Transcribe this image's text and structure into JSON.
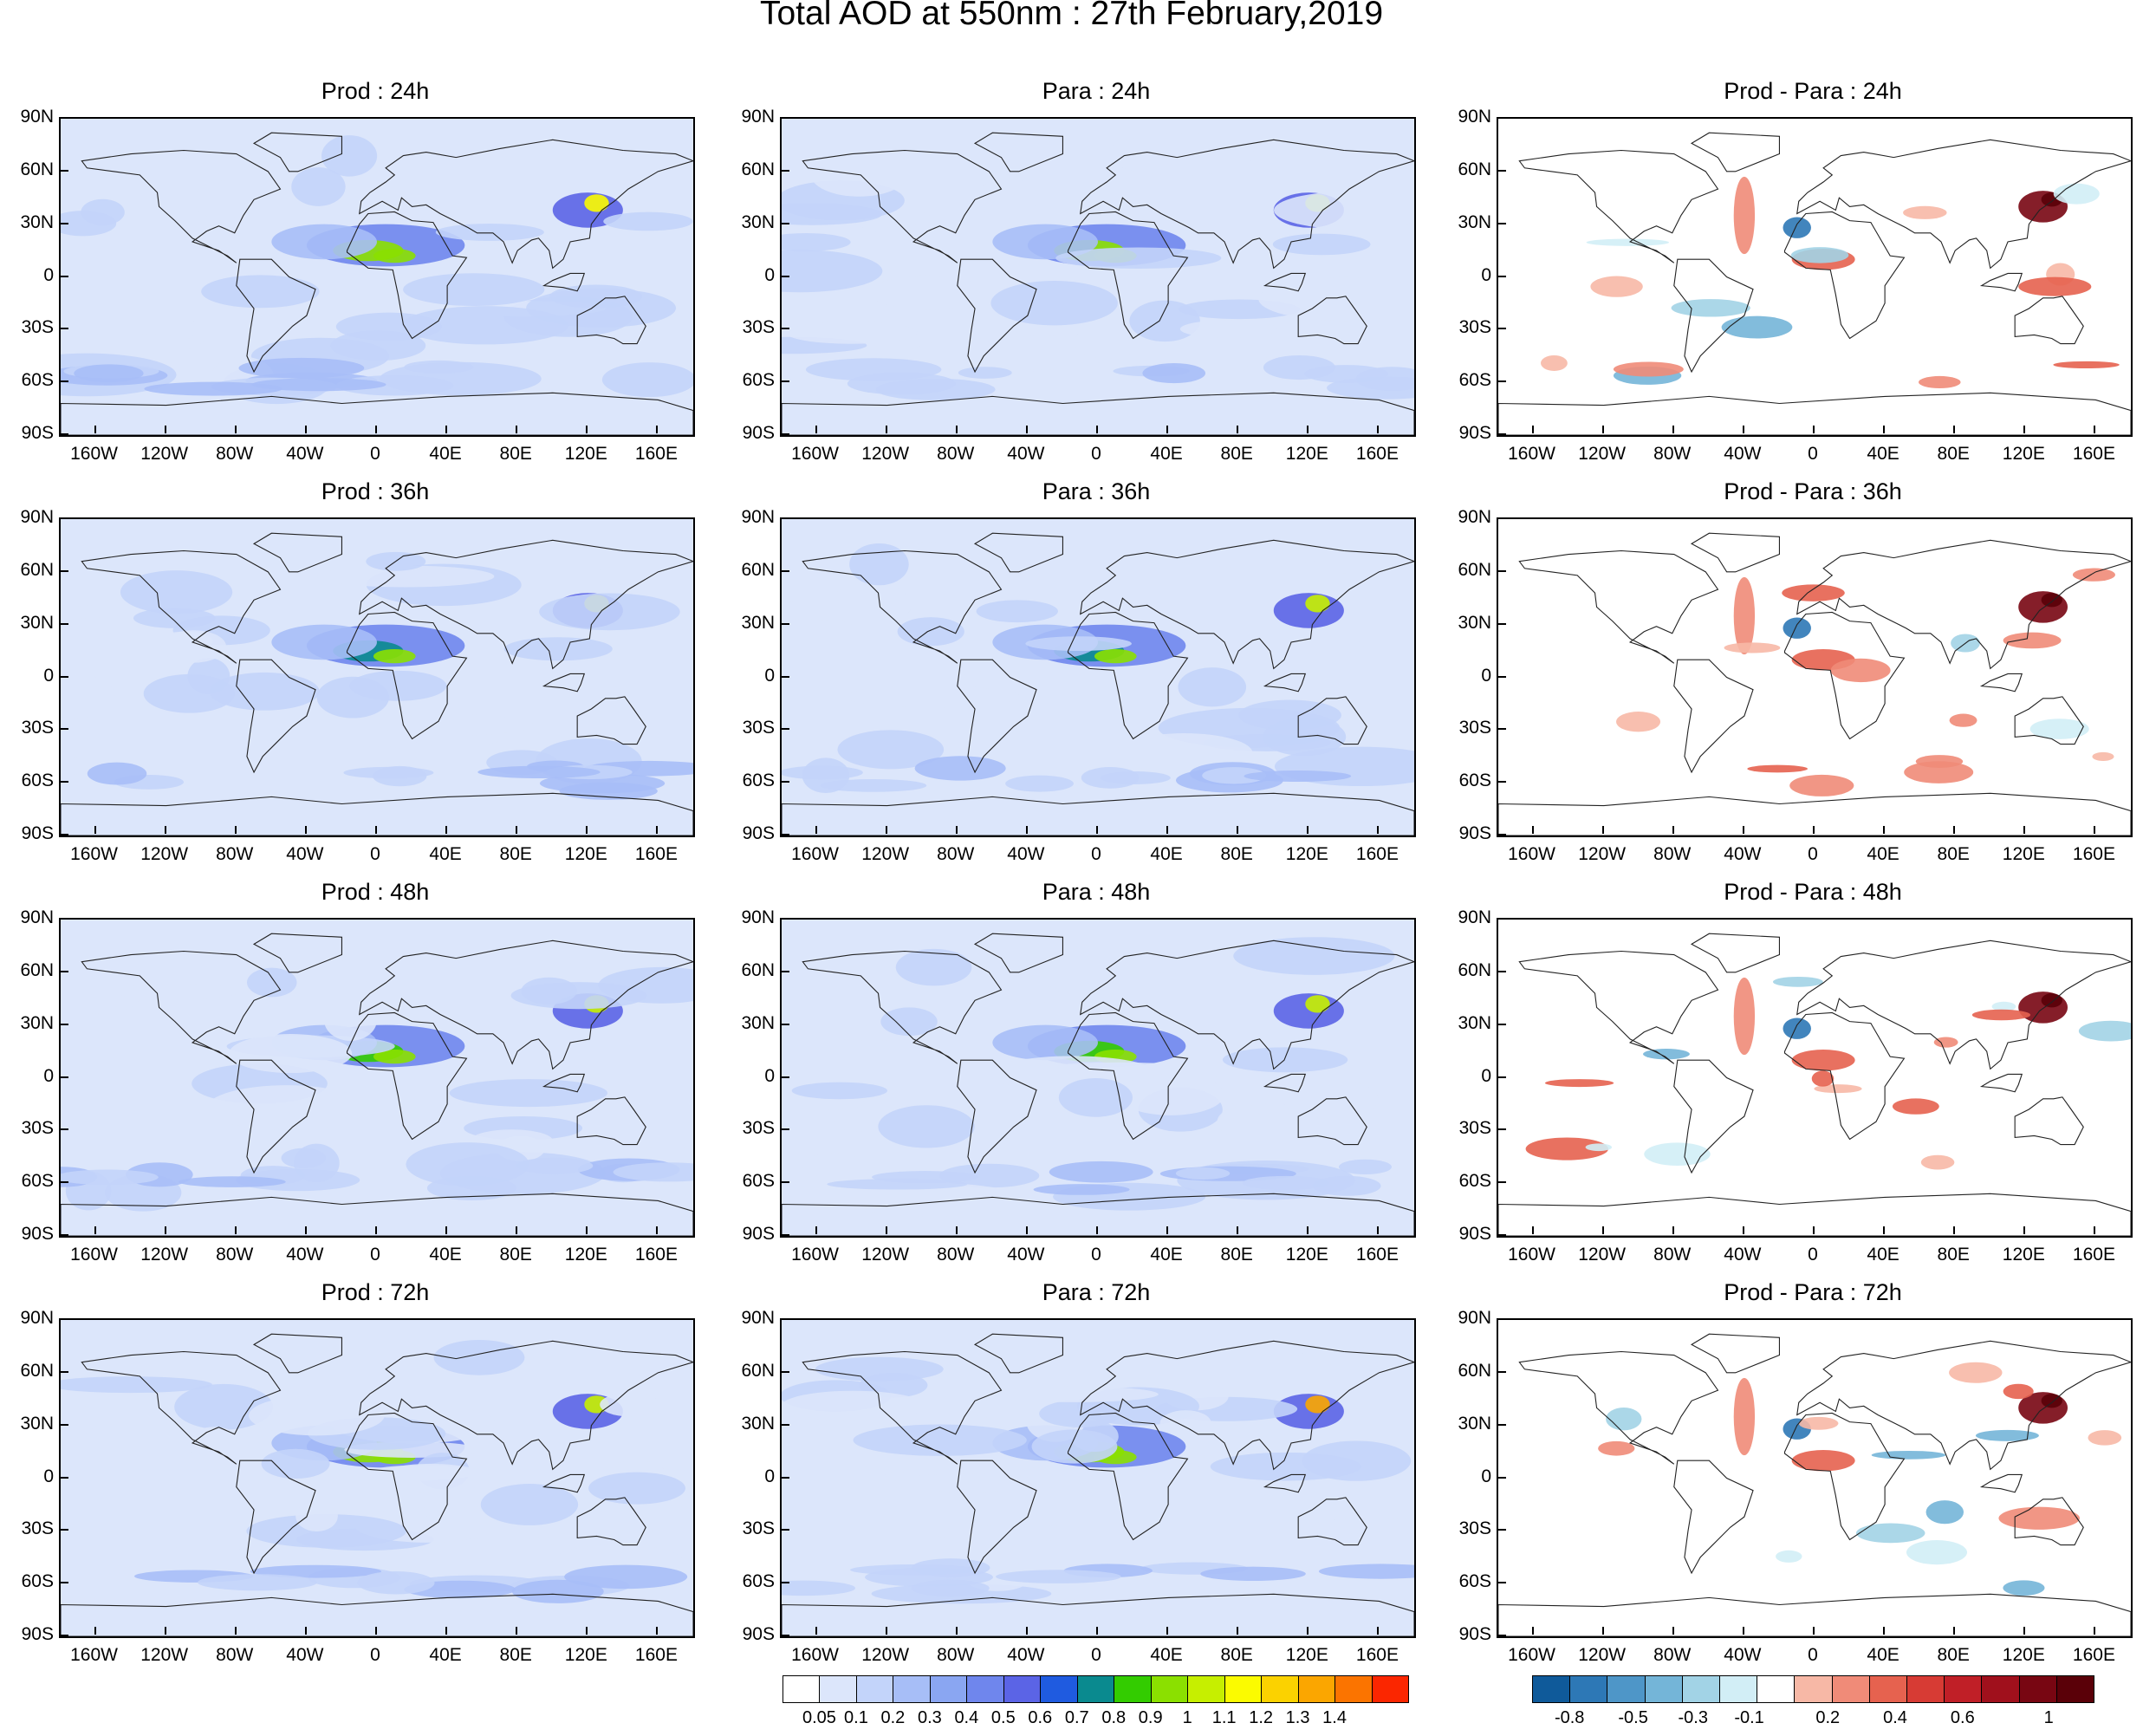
{
  "title": "Total AOD at 550nm : 27th February,2019",
  "panels": [
    {
      "title": "Prod : 24h",
      "kind": "aod",
      "seed": 11
    },
    {
      "title": "Para : 24h",
      "kind": "aod",
      "seed": 12
    },
    {
      "title": "Prod - Para : 24h",
      "kind": "diff",
      "seed": 13
    },
    {
      "title": "Prod : 36h",
      "kind": "aod",
      "seed": 21
    },
    {
      "title": "Para : 36h",
      "kind": "aod",
      "seed": 22
    },
    {
      "title": "Prod - Para : 36h",
      "kind": "diff",
      "seed": 23
    },
    {
      "title": "Prod : 48h",
      "kind": "aod",
      "seed": 31
    },
    {
      "title": "Para : 48h",
      "kind": "aod",
      "seed": 32
    },
    {
      "title": "Prod - Para : 48h",
      "kind": "diff",
      "seed": 33
    },
    {
      "title": "Prod : 72h",
      "kind": "aod",
      "seed": 41
    },
    {
      "title": "Para : 72h",
      "kind": "aod",
      "seed": 42
    },
    {
      "title": "Prod - Para : 72h",
      "kind": "diff",
      "seed": 43
    }
  ],
  "axes": {
    "lat_ticks": [
      "90N",
      "60N",
      "30N",
      "0",
      "30S",
      "60S",
      "90S"
    ],
    "lon_ticks": [
      "160W",
      "120W",
      "80W",
      "40W",
      "0",
      "40E",
      "80E",
      "120E",
      "160E"
    ]
  },
  "colorbars": {
    "aod": {
      "labels": [
        "0.05",
        "0.1",
        "0.2",
        "0.3",
        "0.4",
        "0.5",
        "0.6",
        "0.7",
        "0.8",
        "0.9",
        "1",
        "1.1",
        "1.2",
        "1.3",
        "1.4"
      ],
      "colors": [
        "#ffffff",
        "#dce6fb",
        "#c3d4fa",
        "#a7bef7",
        "#8aa6f2",
        "#6f86ed",
        "#5b64e6",
        "#1f5be0",
        "#0a8a8f",
        "#33cc00",
        "#8be000",
        "#c6ef00",
        "#fbfb00",
        "#fbd200",
        "#fba600",
        "#fb7400",
        "#fb2600"
      ]
    },
    "diff": {
      "labels": [
        "-0.8",
        "-0.5",
        "-0.3",
        "-0.1",
        "0.2",
        "0.4",
        "0.6",
        "1"
      ],
      "colors": [
        "#0f5a9a",
        "#2d78b6",
        "#4e96c8",
        "#74b5d8",
        "#a2d3e6",
        "#d2eef6",
        "#ffffff",
        "#f7b8a6",
        "#f08b78",
        "#e6624f",
        "#d73b34",
        "#c01f27",
        "#a0101c",
        "#780612",
        "#5a0008"
      ]
    }
  }
}
